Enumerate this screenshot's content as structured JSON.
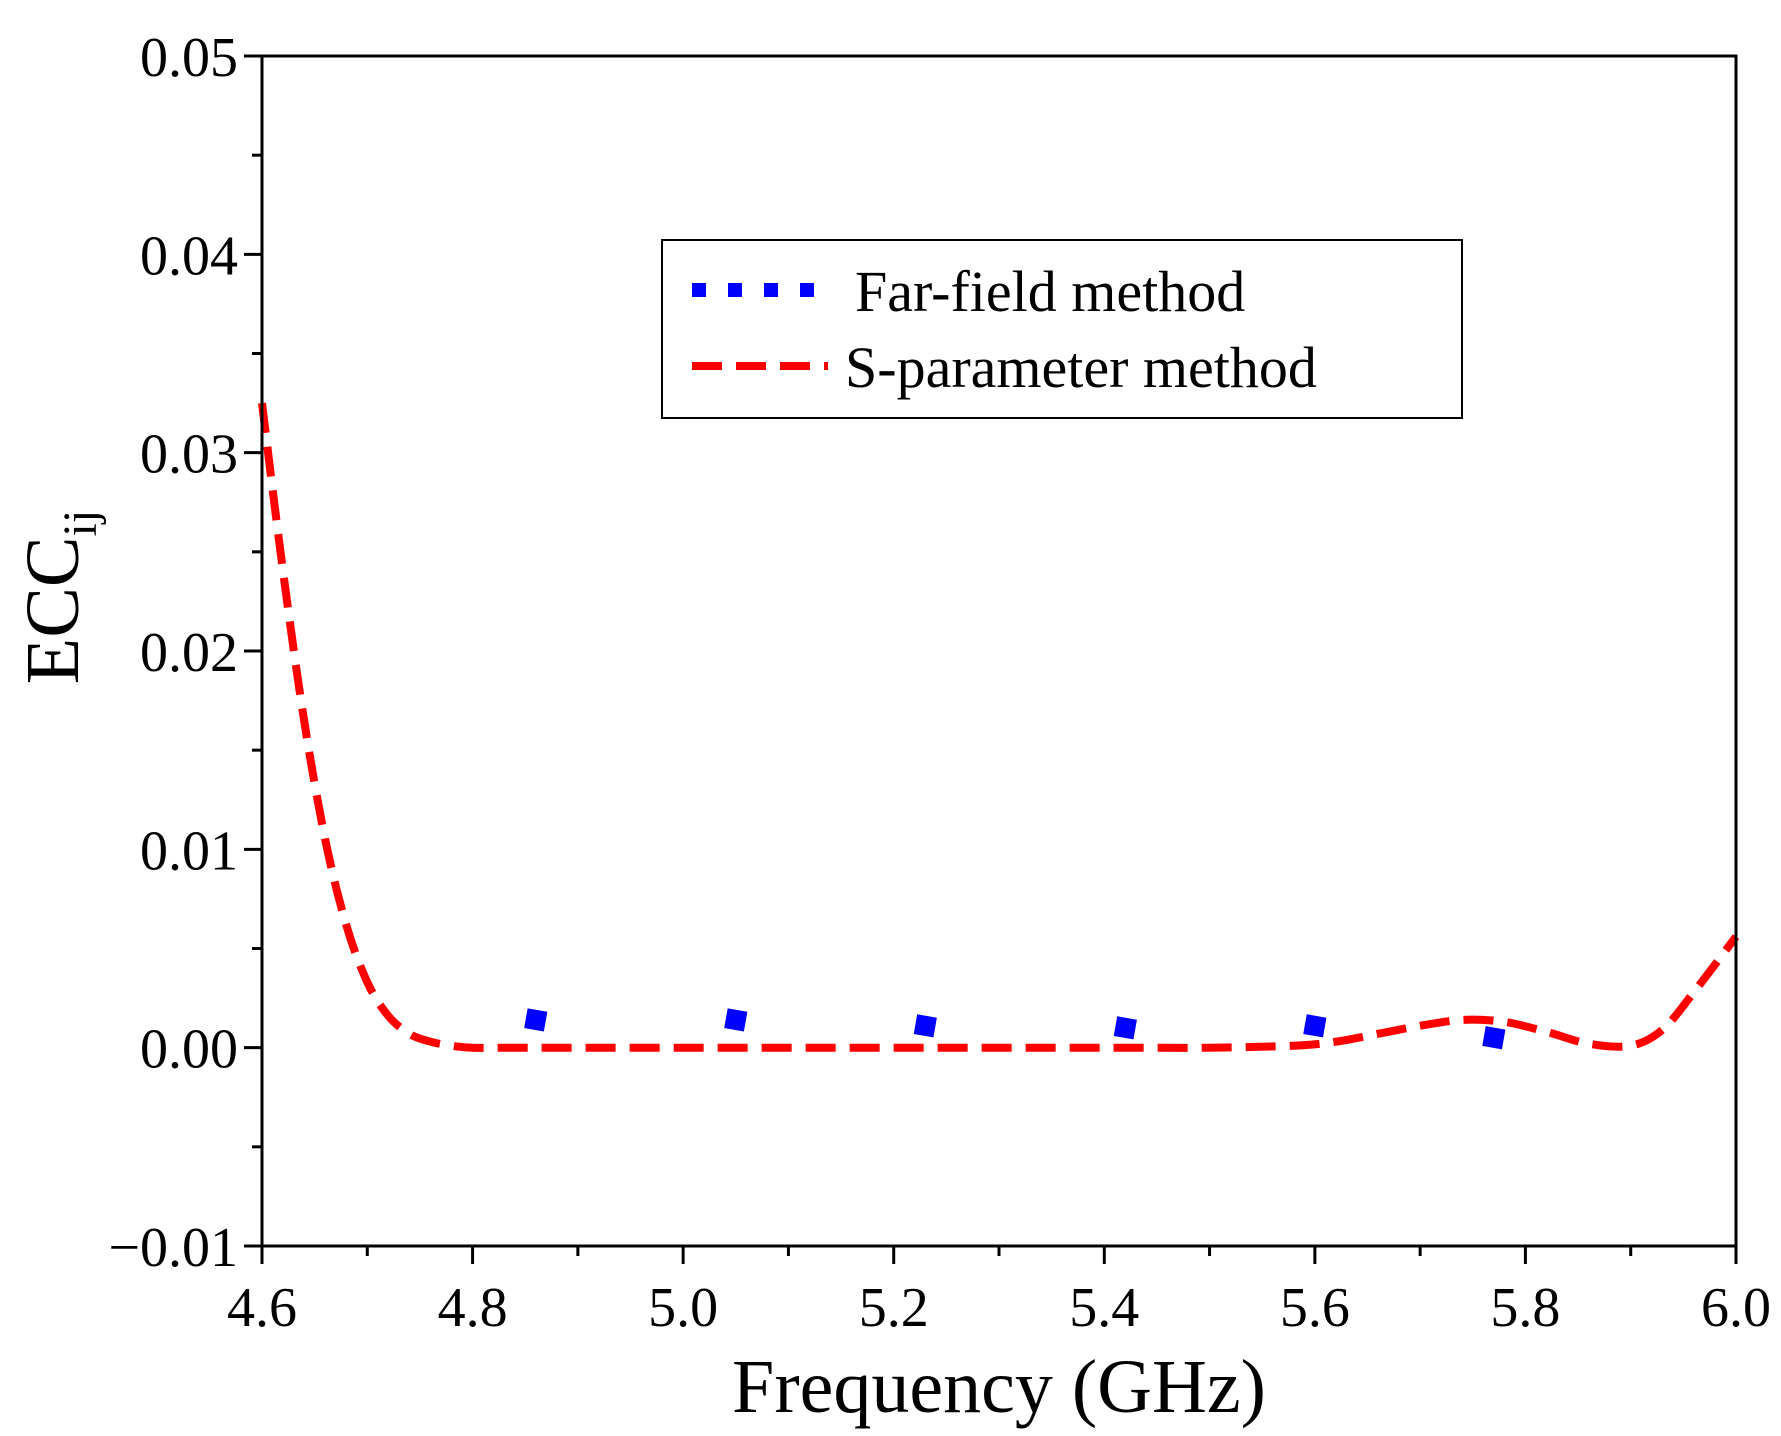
{
  "chart_data": {
    "type": "line",
    "xlabel": "Frequency (GHz)",
    "ylabel_main": "ECC",
    "ylabel_sub": "ij",
    "xlim": [
      4.6,
      6.0
    ],
    "ylim": [
      -0.01,
      0.05
    ],
    "x_ticks": [
      {
        "value": 4.6,
        "label": "4.6"
      },
      {
        "value": 4.8,
        "label": "4.8"
      },
      {
        "value": 5.0,
        "label": "5.0"
      },
      {
        "value": 5.2,
        "label": "5.2"
      },
      {
        "value": 5.4,
        "label": "5.4"
      },
      {
        "value": 5.6,
        "label": "5.6"
      },
      {
        "value": 5.8,
        "label": "5.8"
      },
      {
        "value": 6.0,
        "label": "6.0"
      }
    ],
    "x_minor_ticks": [
      4.7,
      4.9,
      5.1,
      5.3,
      5.5,
      5.7,
      5.9
    ],
    "y_ticks": [
      {
        "value": -0.01,
        "label": "−0.01"
      },
      {
        "value": 0.0,
        "label": "0.00"
      },
      {
        "value": 0.01,
        "label": "0.01"
      },
      {
        "value": 0.02,
        "label": "0.02"
      },
      {
        "value": 0.03,
        "label": "0.03"
      },
      {
        "value": 0.04,
        "label": "0.04"
      },
      {
        "value": 0.05,
        "label": "0.05"
      }
    ],
    "y_minor_ticks": [
      -0.005,
      0.005,
      0.015,
      0.025,
      0.035,
      0.045
    ],
    "legend_position": "top-center",
    "series": [
      {
        "name": "Far-field method",
        "style": "dotted",
        "color": "#0000ff",
        "x": [
          4.86,
          5.05,
          5.23,
          5.42,
          5.6,
          5.77
        ],
        "y": [
          0.0014,
          0.0014,
          0.0011,
          0.001,
          0.0011,
          0.0005
        ]
      },
      {
        "name": "S-parameter method",
        "style": "dashed",
        "color": "#ff0000",
        "x": [
          4.6,
          4.62,
          4.64,
          4.66,
          4.68,
          4.7,
          4.72,
          4.74,
          4.76,
          4.78,
          4.8,
          4.85,
          4.9,
          5.0,
          5.1,
          5.2,
          5.3,
          5.4,
          5.5,
          5.58,
          5.62,
          5.66,
          5.7,
          5.74,
          5.78,
          5.82,
          5.86,
          5.9,
          5.93,
          5.96,
          6.0
        ],
        "y": [
          0.0325,
          0.024,
          0.0165,
          0.0105,
          0.0062,
          0.0033,
          0.0016,
          0.0007,
          0.0003,
          0.0001,
          0.0,
          0.0,
          0.0,
          0.0,
          0.0,
          0.0,
          0.0,
          0.0,
          0.0,
          0.0001,
          0.0003,
          0.0007,
          0.0011,
          0.0014,
          0.0013,
          0.0008,
          0.0002,
          0.0001,
          0.0009,
          0.0028,
          0.0056
        ]
      }
    ]
  }
}
